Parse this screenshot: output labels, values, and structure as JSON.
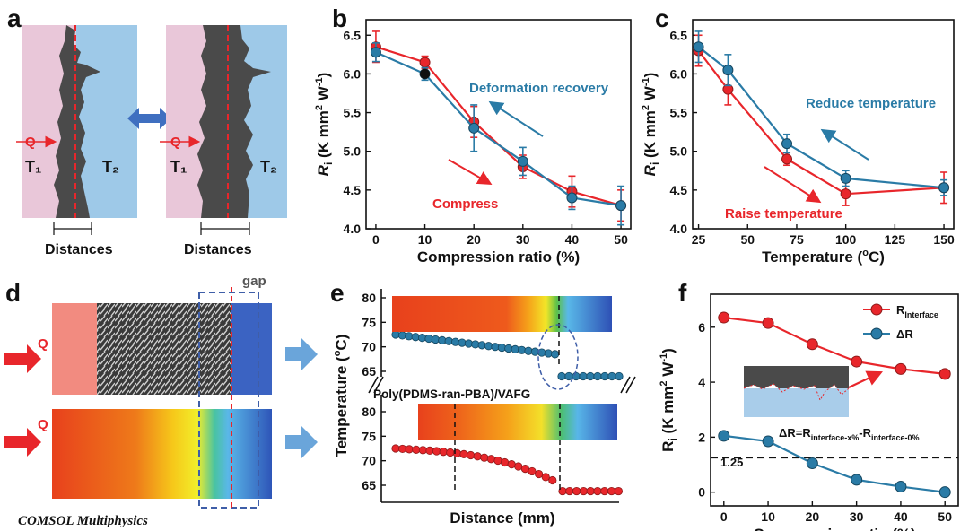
{
  "colors": {
    "red": "#e8262b",
    "blue": "#2a7ba6",
    "pink": "#e9c7d9",
    "lightblue": "#9ec9e8",
    "gray": "#4a4a4a"
  },
  "panel_a": {
    "label": "a",
    "q": "Q",
    "t1": "T₁",
    "t2": "T₂",
    "distances": "Distances"
  },
  "panel_b": {
    "label": "b",
    "note_recovery": "Deformation recovery",
    "note_compress": "Compress"
  },
  "panel_c": {
    "label": "c",
    "note_reduce": "Reduce temperature",
    "note_raise": "Raise temperature"
  },
  "panel_d": {
    "label": "d",
    "q": "Q",
    "gap": "gap",
    "software": "COMSOL Multiphysics"
  },
  "panel_e": {
    "label": "e",
    "material": "Poly(PDMS-ran-PBA)/VAFG"
  },
  "panel_f": {
    "label": "f",
    "legend_1": "R",
    "legend_1_sub": "Interface",
    "legend_2": "ΔR",
    "eq_main": "ΔR=R",
    "eq_sub1": "interface-x%",
    "eq_mid": "-R",
    "eq_sub2": "interface-0%",
    "ref": "1.25"
  },
  "chart_data": [
    {
      "id": "b",
      "type": "line",
      "xlabel": "Compression ratio (%)",
      "ylabel": "Ri (K mm2 W-1)",
      "xlim": [
        -2,
        52
      ],
      "ylim": [
        4.0,
        6.7
      ],
      "xticks": [
        0,
        10,
        20,
        30,
        40,
        50
      ],
      "yticks": [
        4.0,
        4.5,
        5.0,
        5.5,
        6.0,
        6.5
      ],
      "x": [
        0,
        10,
        20,
        30,
        40,
        50
      ],
      "series": [
        {
          "name": "Compress",
          "color": "red",
          "values": [
            6.35,
            6.15,
            5.38,
            4.8,
            4.48,
            4.3
          ],
          "err": [
            0.2,
            0.08,
            0.2,
            0.15,
            0.2,
            0.2
          ]
        },
        {
          "name": "Deformation recovery",
          "color": "blue",
          "values": [
            6.28,
            6.0,
            5.3,
            4.87,
            4.4,
            4.3
          ],
          "err": [
            0.12,
            0.08,
            0.3,
            0.18,
            0.15,
            0.25
          ]
        }
      ]
    },
    {
      "id": "c",
      "type": "line",
      "xlabel": "Temperature (°C)",
      "ylabel": "Ri (K mm2 W-1)",
      "xlim": [
        22,
        155
      ],
      "ylim": [
        4.0,
        6.7
      ],
      "xticks": [
        25,
        50,
        75,
        100,
        125,
        150
      ],
      "yticks": [
        4.0,
        4.5,
        5.0,
        5.5,
        6.0,
        6.5
      ],
      "x": [
        25,
        40,
        70,
        100,
        150
      ],
      "series": [
        {
          "name": "Raise temperature",
          "color": "red",
          "values": [
            6.3,
            5.8,
            4.9,
            4.45,
            4.53
          ],
          "err": [
            0.2,
            0.2,
            0.08,
            0.15,
            0.2
          ]
        },
        {
          "name": "Reduce temperature",
          "color": "blue",
          "values": [
            6.35,
            6.05,
            5.1,
            4.65,
            4.53
          ],
          "err": [
            0.2,
            0.2,
            0.12,
            0.1,
            0.1
          ]
        }
      ]
    },
    {
      "id": "e",
      "type": "scatter",
      "xlabel": "Distance (mm)",
      "ylabel": "Temperature (°C)",
      "ticks_top": [
        65,
        70,
        75,
        80
      ],
      "ticks_bottom": [
        65,
        70,
        75,
        80
      ],
      "series": [
        {
          "name": "top",
          "color": "blue",
          "points": "descending 72.5 to 68.5 then step to 64"
        },
        {
          "name": "bottom",
          "color": "red",
          "points": "descending 72.5 to 66 then step to 63.8"
        }
      ]
    },
    {
      "id": "f",
      "type": "line",
      "xlabel": "Compression ratio (%)",
      "ylabel": "Ri (K mm2 W-1)",
      "xlim": [
        -3,
        53
      ],
      "ylim": [
        -0.5,
        7.2
      ],
      "xticks": [
        0,
        10,
        20,
        30,
        40,
        50
      ],
      "yticks": [
        0,
        2,
        4,
        6
      ],
      "x": [
        0,
        10,
        20,
        30,
        40,
        50
      ],
      "reference_line": 1.25,
      "series": [
        {
          "name": "RInterface",
          "color": "red",
          "values": [
            6.35,
            6.15,
            5.38,
            4.75,
            4.48,
            4.3
          ]
        },
        {
          "name": "ΔR",
          "color": "blue",
          "values": [
            2.05,
            1.85,
            1.05,
            0.45,
            0.2,
            0.0
          ]
        }
      ]
    }
  ]
}
